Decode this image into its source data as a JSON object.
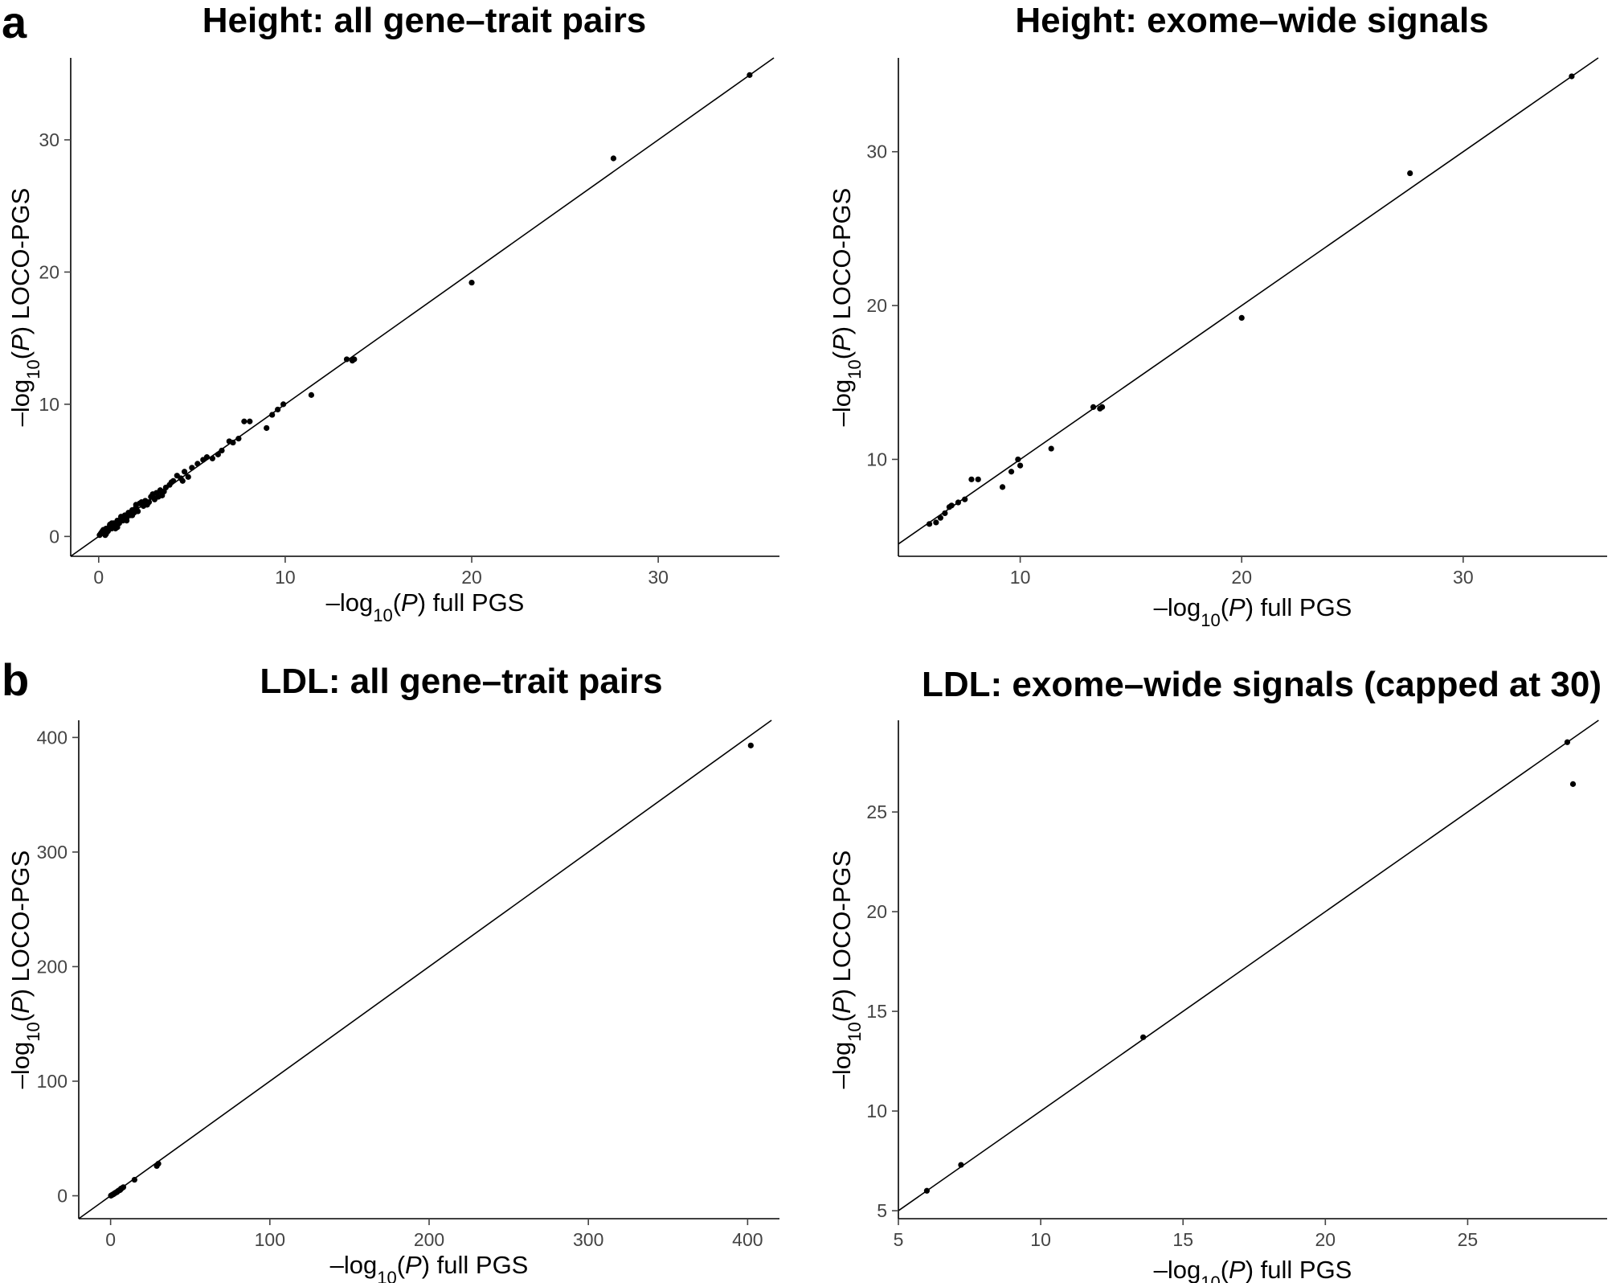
{
  "panel_letters": {
    "a": "a",
    "b": "b"
  },
  "colors": {
    "points": "#000000",
    "axis": "#000000",
    "ticks": "#444444",
    "background": "#ffffff"
  },
  "chart_data": [
    {
      "type": "scatter",
      "title": "Height: all gene–trait pairs",
      "xlabel": "–log10(P) full PGS",
      "ylabel": "–log10(P) LOCO-PGS",
      "xlim": [
        -1.5,
        36.5
      ],
      "ylim": [
        -1.5,
        36.2
      ],
      "xticks": [
        0,
        10,
        20,
        30
      ],
      "yticks": [
        0,
        10,
        20,
        30
      ],
      "grid": false,
      "reference_line": "y = x",
      "x": [
        34.9,
        27.6,
        20.0,
        13.3,
        13.6,
        13.7,
        11.4,
        9.9,
        9.6,
        9.3,
        9.0,
        8.1,
        7.8,
        7.5,
        7.2,
        7.0,
        6.6,
        6.4,
        6.1,
        5.8,
        5.6,
        5.3,
        5.0,
        4.8,
        4.6,
        4.4,
        4.2,
        4.0,
        3.8,
        3.6,
        3.5,
        3.3,
        3.1,
        3.0,
        2.8,
        2.7,
        2.5,
        2.4,
        2.2,
        2.1,
        2.0,
        1.9,
        1.8,
        1.7,
        1.6,
        1.5,
        1.4,
        1.3,
        1.2,
        1.1,
        1.0,
        0.9,
        0.8,
        0.7,
        0.6,
        0.5,
        0.4,
        0.3,
        0.2,
        0.1,
        2.6,
        3.2,
        1.8,
        2.3,
        1.5,
        1.2,
        0.9,
        0.6,
        0.4,
        0.25,
        3.9,
        4.5,
        2.9,
        3.4,
        2.0,
        1.0,
        0.7,
        0.35,
        0.15,
        0.05
      ],
      "y": [
        34.9,
        28.6,
        19.2,
        13.4,
        13.3,
        13.4,
        10.7,
        10.0,
        9.6,
        9.2,
        8.2,
        8.7,
        8.7,
        7.4,
        7.1,
        7.2,
        6.5,
        6.2,
        5.9,
        6.0,
        5.8,
        5.5,
        5.2,
        4.5,
        4.9,
        4.4,
        4.6,
        4.2,
        3.9,
        3.7,
        3.4,
        3.5,
        3.3,
        2.8,
        3.0,
        2.6,
        2.7,
        2.3,
        2.5,
        1.9,
        2.2,
        1.8,
        2.0,
        1.6,
        1.8,
        1.4,
        1.6,
        1.2,
        1.4,
        1.0,
        1.2,
        0.8,
        1.0,
        0.6,
        0.8,
        0.4,
        0.6,
        0.3,
        0.4,
        0.2,
        2.4,
        3.0,
        1.6,
        2.6,
        1.2,
        1.5,
        0.6,
        0.9,
        0.2,
        0.5,
        4.1,
        4.2,
        3.2,
        3.1,
        2.4,
        0.7,
        1.0,
        0.1,
        0.3,
        0.1
      ]
    },
    {
      "type": "scatter",
      "title": "Height: exome–wide signals",
      "xlabel": "–log10(P) full PGS",
      "ylabel": "–log10(P) LOCO-PGS",
      "xlim": [
        4.5,
        36.5
      ],
      "ylim": [
        3.7,
        36.1
      ],
      "xticks": [
        10,
        20,
        30
      ],
      "yticks": [
        10,
        20,
        30
      ],
      "grid": false,
      "reference_line": "y = x",
      "x": [
        34.9,
        27.6,
        20.0,
        13.3,
        13.6,
        13.7,
        11.4,
        9.9,
        9.6,
        10.0,
        9.2,
        8.1,
        7.8,
        7.5,
        7.2,
        6.9,
        6.6,
        6.4,
        6.2,
        5.9,
        6.8
      ],
      "y": [
        34.9,
        28.6,
        19.2,
        13.4,
        13.3,
        13.4,
        10.7,
        10.0,
        9.2,
        9.6,
        8.2,
        8.7,
        8.7,
        7.4,
        7.2,
        7.0,
        6.5,
        6.2,
        5.9,
        5.8,
        6.9
      ]
    },
    {
      "type": "scatter",
      "title": "LDL: all gene–trait pairs",
      "xlabel": "–log10(P) full PGS",
      "ylabel": "–log10(P) LOCO-PGS",
      "xlim": [
        -20,
        420
      ],
      "ylim": [
        -20,
        415
      ],
      "xticks": [
        0,
        100,
        200,
        300,
        400
      ],
      "yticks": [
        0,
        100,
        200,
        300,
        400
      ],
      "grid": false,
      "reference_line": "y = x",
      "x": [
        402,
        30,
        29,
        15,
        8,
        7,
        6,
        5,
        4.5,
        4,
        3.5,
        3,
        2.5,
        2,
        1.5,
        1,
        0.5,
        0.2,
        5.5,
        6.5
      ],
      "y": [
        393,
        28,
        26,
        14,
        7.5,
        6.5,
        5,
        4.5,
        4,
        3.2,
        3,
        2.5,
        2.2,
        1.5,
        1.2,
        0.8,
        0.4,
        0.1,
        4.8,
        6.2
      ]
    },
    {
      "type": "scatter",
      "title": "LDL: exome–wide signals (capped at 30)",
      "xlabel": "–log10(P) full PGS",
      "ylabel": "–log10(P) LOCO-PGS",
      "xlim": [
        5,
        29.9
      ],
      "ylim": [
        4.6,
        29.6
      ],
      "xticks": [
        5,
        10,
        15,
        20,
        25
      ],
      "yticks": [
        5,
        10,
        15,
        20,
        25
      ],
      "grid": false,
      "reference_line": "y = x",
      "x": [
        28.5,
        28.7,
        13.6,
        7.2,
        6.0
      ],
      "y": [
        28.5,
        26.4,
        13.7,
        7.3,
        6.0
      ]
    }
  ]
}
